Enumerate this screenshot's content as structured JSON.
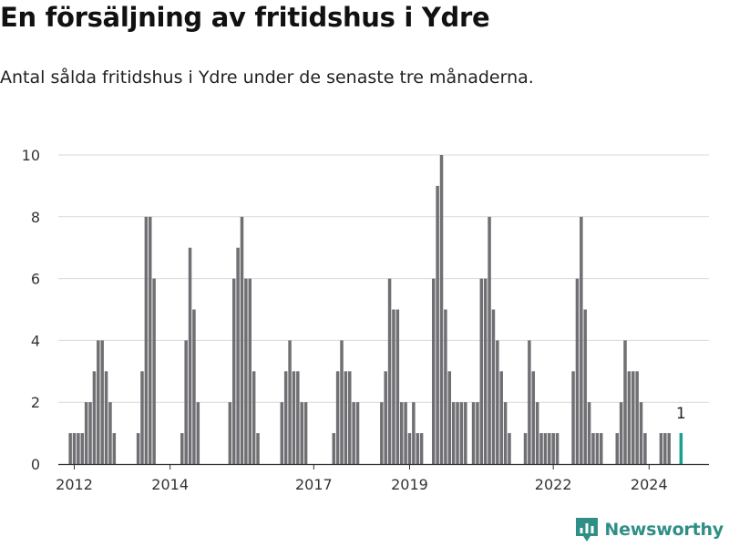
{
  "header": {
    "title": "En försäljning av fritidshus i Ydre",
    "subtitle": "Antal sålda fritidshus i Ydre under de senaste tre månaderna."
  },
  "brand": {
    "name": "Newsworthy",
    "icon": "newsworthy-logo-icon",
    "color": "#2f8f86"
  },
  "colors": {
    "bar": "#707074",
    "highlight": "#1a9e8f",
    "grid": "#d9d9d9",
    "axis": "#333333"
  },
  "chart_data": {
    "type": "bar",
    "title": "En försäljning av fritidshus i Ydre",
    "xlabel": "",
    "ylabel": "",
    "ylim": [
      0,
      10
    ],
    "yticks": [
      0,
      2,
      4,
      6,
      8,
      10
    ],
    "x_range": [
      "2011-09",
      "2025-04"
    ],
    "xticks": [
      {
        "label": "2012",
        "date": "2012-01"
      },
      {
        "label": "2014",
        "date": "2014-01"
      },
      {
        "label": "2017",
        "date": "2017-01"
      },
      {
        "label": "2019",
        "date": "2019-01"
      },
      {
        "label": "2022",
        "date": "2022-01"
      },
      {
        "label": "2024",
        "date": "2024-01"
      }
    ],
    "grid": true,
    "legend": "none",
    "annotation": {
      "date": "2024-09",
      "text": "1"
    },
    "series": [
      {
        "values": [
          {
            "date": "2011-12",
            "value": 1
          },
          {
            "date": "2012-01",
            "value": 1
          },
          {
            "date": "2012-02",
            "value": 1
          },
          {
            "date": "2012-03",
            "value": 1
          },
          {
            "date": "2012-04",
            "value": 2
          },
          {
            "date": "2012-05",
            "value": 2
          },
          {
            "date": "2012-06",
            "value": 3
          },
          {
            "date": "2012-07",
            "value": 4
          },
          {
            "date": "2012-08",
            "value": 4
          },
          {
            "date": "2012-09",
            "value": 3
          },
          {
            "date": "2012-10",
            "value": 2
          },
          {
            "date": "2012-11",
            "value": 1
          },
          {
            "date": "2013-05",
            "value": 1
          },
          {
            "date": "2013-06",
            "value": 3
          },
          {
            "date": "2013-07",
            "value": 8
          },
          {
            "date": "2013-08",
            "value": 8
          },
          {
            "date": "2013-09",
            "value": 6
          },
          {
            "date": "2014-04",
            "value": 1
          },
          {
            "date": "2014-05",
            "value": 4
          },
          {
            "date": "2014-06",
            "value": 7
          },
          {
            "date": "2014-07",
            "value": 5
          },
          {
            "date": "2014-08",
            "value": 2
          },
          {
            "date": "2015-04",
            "value": 2
          },
          {
            "date": "2015-05",
            "value": 6
          },
          {
            "date": "2015-06",
            "value": 7
          },
          {
            "date": "2015-07",
            "value": 8
          },
          {
            "date": "2015-08",
            "value": 6
          },
          {
            "date": "2015-09",
            "value": 6
          },
          {
            "date": "2015-10",
            "value": 3
          },
          {
            "date": "2015-11",
            "value": 1
          },
          {
            "date": "2016-05",
            "value": 2
          },
          {
            "date": "2016-06",
            "value": 3
          },
          {
            "date": "2016-07",
            "value": 4
          },
          {
            "date": "2016-08",
            "value": 3
          },
          {
            "date": "2016-09",
            "value": 3
          },
          {
            "date": "2016-10",
            "value": 2
          },
          {
            "date": "2016-11",
            "value": 2
          },
          {
            "date": "2017-06",
            "value": 1
          },
          {
            "date": "2017-07",
            "value": 3
          },
          {
            "date": "2017-08",
            "value": 4
          },
          {
            "date": "2017-09",
            "value": 3
          },
          {
            "date": "2017-10",
            "value": 3
          },
          {
            "date": "2017-11",
            "value": 2
          },
          {
            "date": "2017-12",
            "value": 2
          },
          {
            "date": "2018-06",
            "value": 2
          },
          {
            "date": "2018-07",
            "value": 3
          },
          {
            "date": "2018-08",
            "value": 6
          },
          {
            "date": "2018-09",
            "value": 5
          },
          {
            "date": "2018-10",
            "value": 5
          },
          {
            "date": "2018-11",
            "value": 2
          },
          {
            "date": "2018-12",
            "value": 2
          },
          {
            "date": "2019-01",
            "value": 1
          },
          {
            "date": "2019-02",
            "value": 2
          },
          {
            "date": "2019-03",
            "value": 1
          },
          {
            "date": "2019-04",
            "value": 1
          },
          {
            "date": "2019-07",
            "value": 6
          },
          {
            "date": "2019-08",
            "value": 9
          },
          {
            "date": "2019-09",
            "value": 10
          },
          {
            "date": "2019-10",
            "value": 5
          },
          {
            "date": "2019-11",
            "value": 3
          },
          {
            "date": "2019-12",
            "value": 2
          },
          {
            "date": "2020-01",
            "value": 2
          },
          {
            "date": "2020-02",
            "value": 2
          },
          {
            "date": "2020-03",
            "value": 2
          },
          {
            "date": "2020-05",
            "value": 2
          },
          {
            "date": "2020-06",
            "value": 2
          },
          {
            "date": "2020-07",
            "value": 6
          },
          {
            "date": "2020-08",
            "value": 6
          },
          {
            "date": "2020-09",
            "value": 8
          },
          {
            "date": "2020-10",
            "value": 5
          },
          {
            "date": "2020-11",
            "value": 4
          },
          {
            "date": "2020-12",
            "value": 3
          },
          {
            "date": "2021-01",
            "value": 2
          },
          {
            "date": "2021-02",
            "value": 1
          },
          {
            "date": "2021-06",
            "value": 1
          },
          {
            "date": "2021-07",
            "value": 4
          },
          {
            "date": "2021-08",
            "value": 3
          },
          {
            "date": "2021-09",
            "value": 2
          },
          {
            "date": "2021-10",
            "value": 1
          },
          {
            "date": "2021-11",
            "value": 1
          },
          {
            "date": "2021-12",
            "value": 1
          },
          {
            "date": "2022-01",
            "value": 1
          },
          {
            "date": "2022-02",
            "value": 1
          },
          {
            "date": "2022-06",
            "value": 3
          },
          {
            "date": "2022-07",
            "value": 6
          },
          {
            "date": "2022-08",
            "value": 8
          },
          {
            "date": "2022-09",
            "value": 5
          },
          {
            "date": "2022-10",
            "value": 2
          },
          {
            "date": "2022-11",
            "value": 1
          },
          {
            "date": "2022-12",
            "value": 1
          },
          {
            "date": "2023-01",
            "value": 1
          },
          {
            "date": "2023-05",
            "value": 1
          },
          {
            "date": "2023-06",
            "value": 2
          },
          {
            "date": "2023-07",
            "value": 4
          },
          {
            "date": "2023-08",
            "value": 3
          },
          {
            "date": "2023-09",
            "value": 3
          },
          {
            "date": "2023-10",
            "value": 3
          },
          {
            "date": "2023-11",
            "value": 2
          },
          {
            "date": "2023-12",
            "value": 1
          },
          {
            "date": "2024-04",
            "value": 1
          },
          {
            "date": "2024-05",
            "value": 1
          },
          {
            "date": "2024-06",
            "value": 1
          },
          {
            "date": "2024-09",
            "value": 1,
            "highlight": true
          }
        ]
      }
    ]
  }
}
